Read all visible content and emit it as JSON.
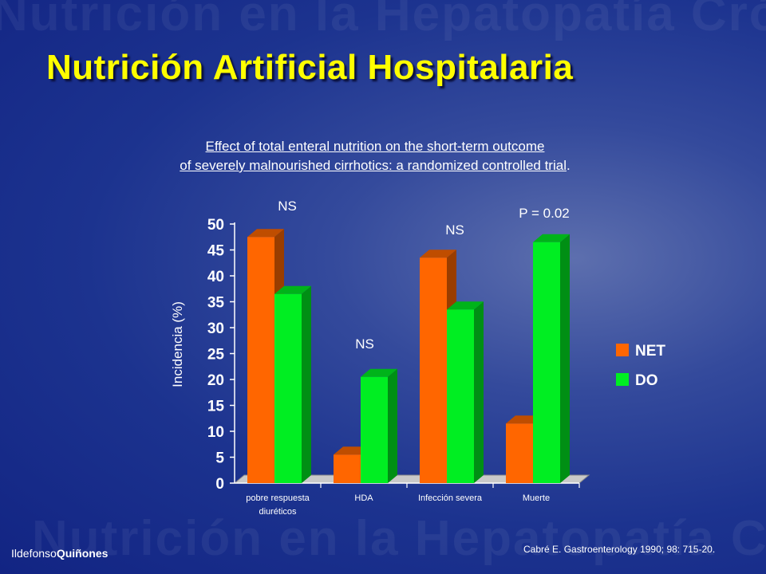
{
  "header": {
    "watermark": "Nutrición en la Hepatopatía Crónica",
    "title": "Nutrición Artificial Hospitalaria",
    "subtitle_line1": "Effect of total enteral nutrition on the short-term outcome",
    "subtitle_line2": "of severely malnourished cirrhotics: a randomized controlled trial",
    "subtitle_period": "."
  },
  "chart_data": {
    "type": "bar",
    "categories": [
      [
        "pobre respuesta",
        "diuréticos"
      ],
      [
        "HDA"
      ],
      [
        "Infección severa"
      ],
      [
        "Muerte"
      ]
    ],
    "series": [
      {
        "name": "NET",
        "values": [
          47.5,
          5.5,
          43.5,
          11.5
        ],
        "color": "#ff6600"
      },
      {
        "name": "DO",
        "values": [
          36.5,
          20.5,
          33.5,
          46.5
        ],
        "color": "#00ee22"
      }
    ],
    "ylabel": "Incidencia (%)",
    "ylim": [
      0,
      50
    ],
    "yticks": [
      "0",
      "5",
      "10",
      "15",
      "20",
      "25",
      "30",
      "35",
      "40",
      "45",
      "50"
    ],
    "annotations": [
      "NS",
      "NS",
      "NS",
      "P = 0.02"
    ],
    "legend_position": "right",
    "grid": false
  },
  "colors": {
    "title": "#ffff00",
    "net": "#ff6600",
    "do": "#00ee22"
  },
  "footer": {
    "citation": "Cabré E. Gastroenterology 1990; 98: 715-20.",
    "brand_first": "Ildefonso",
    "brand_last": "Quiñones"
  }
}
